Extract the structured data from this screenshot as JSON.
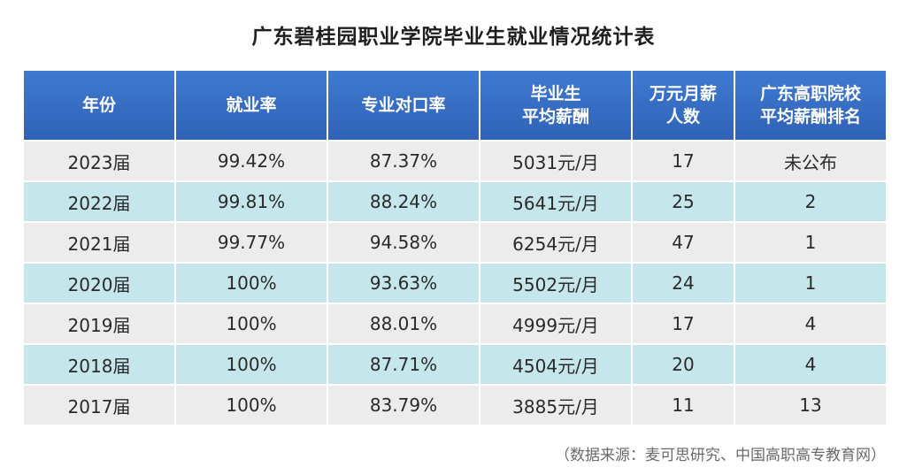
{
  "title": "广东碧桂园职业学院毕业生就业情况统计表",
  "table": {
    "headers": [
      {
        "lines": [
          "年份"
        ]
      },
      {
        "lines": [
          "就业率"
        ]
      },
      {
        "lines": [
          "专业对口率"
        ]
      },
      {
        "lines": [
          "毕业生",
          "平均薪酬"
        ]
      },
      {
        "lines": [
          "万元月薪",
          "人数"
        ]
      },
      {
        "lines": [
          "广东高职院校",
          "平均薪酬排名"
        ]
      }
    ],
    "rows": [
      [
        "2023届",
        "99.42%",
        "87.37%",
        "5031元/月",
        "17",
        "未公布"
      ],
      [
        "2022届",
        "99.81%",
        "88.24%",
        "5641元/月",
        "25",
        "2"
      ],
      [
        "2021届",
        "99.77%",
        "94.58%",
        "6254元/月",
        "47",
        "1"
      ],
      [
        "2020届",
        "100%",
        "93.63%",
        "5502元/月",
        "24",
        "1"
      ],
      [
        "2019届",
        "100%",
        "88.01%",
        "4999元/月",
        "17",
        "4"
      ],
      [
        "2018届",
        "100%",
        "87.71%",
        "4504元/月",
        "20",
        "4"
      ],
      [
        "2017届",
        "100%",
        "83.79%",
        "3885元/月",
        "11",
        "13"
      ]
    ]
  },
  "source": "（数据来源：麦可思研究、中国高职高专教育网）",
  "colors": {
    "header_bg": "#3469c0",
    "row_gray": "#ececec",
    "row_teal": "#c5e6ea"
  }
}
